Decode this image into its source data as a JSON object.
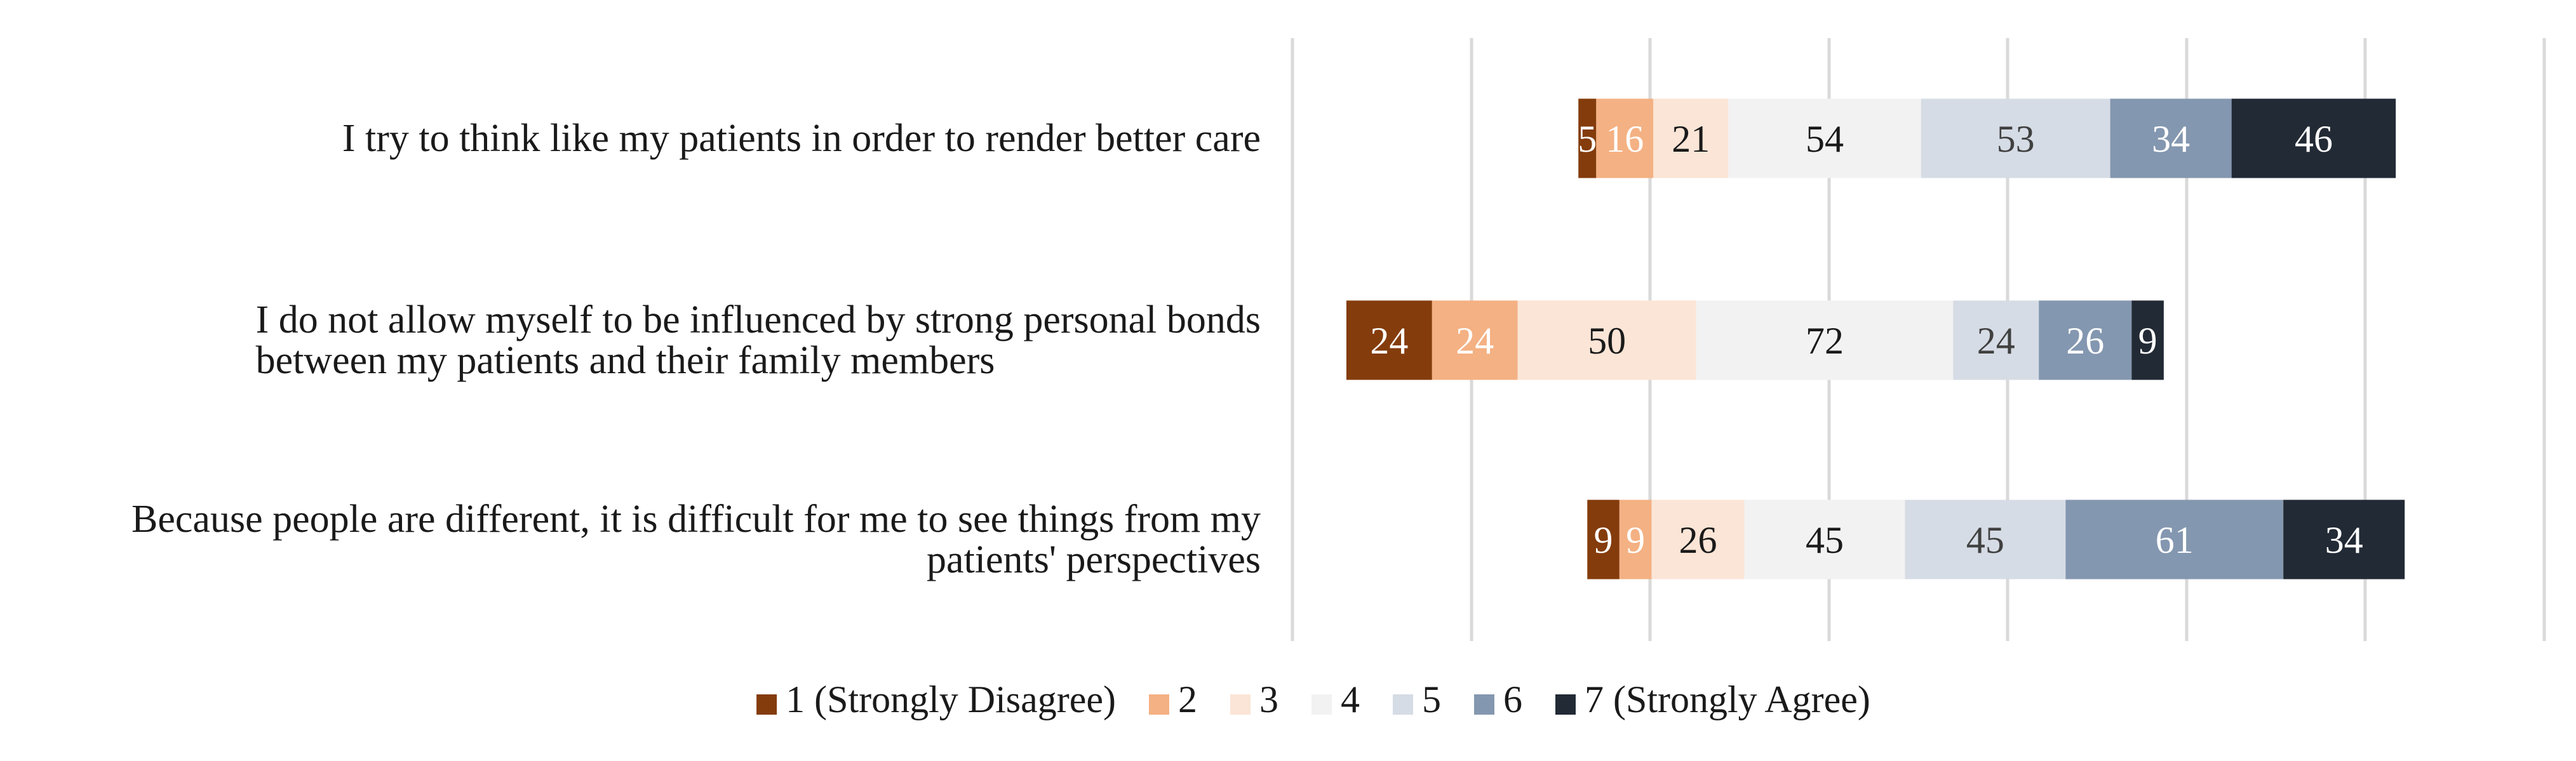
{
  "chart_data": {
    "type": "bar",
    "orientation": "horizontal",
    "stacked": "diverging",
    "title": "",
    "xlabel": "",
    "ylabel": "",
    "grid": true,
    "legend_position": "bottom",
    "categories": [
      "I try to think like my patients in order to render better care",
      "I do not allow myself to be influenced by strong personal bonds between my patients and their family members",
      "Because people are different, it is difficult for me to see things from my patients' perspectives"
    ],
    "category_lines": [
      [
        "I try to think like my patients in order to render better care"
      ],
      [
        "I do not allow myself to be influenced by strong personal bonds",
        "between my patients and their family members"
      ],
      [
        "Because people are different, it is difficult for me to see things from my",
        "patients' perspectives"
      ]
    ],
    "series": [
      {
        "name": "1 (Strongly Disagree)",
        "color": "#843c0c",
        "label_color": "#ffffff",
        "values": [
          5,
          24,
          9
        ]
      },
      {
        "name": "2",
        "color": "#f4b183",
        "label_color": "#ffffff",
        "values": [
          16,
          24,
          9
        ]
      },
      {
        "name": "3",
        "color": "#fbe5d6",
        "label_color": "#1a1a1a",
        "values": [
          21,
          50,
          26
        ]
      },
      {
        "name": "4",
        "color": "#f2f2f2",
        "label_color": "#1a1a1a",
        "values": [
          54,
          72,
          45
        ]
      },
      {
        "name": "5",
        "color": "#d6dce5",
        "label_color": "#404040",
        "values": [
          53,
          24,
          45
        ]
      },
      {
        "name": "6",
        "color": "#8497b0",
        "label_color": "#ffffff",
        "values": [
          34,
          26,
          61
        ]
      },
      {
        "name": "7 (Strongly Agree)",
        "color": "#222a35",
        "label_color": "#ffffff",
        "values": [
          46,
          9,
          34
        ]
      }
    ]
  }
}
